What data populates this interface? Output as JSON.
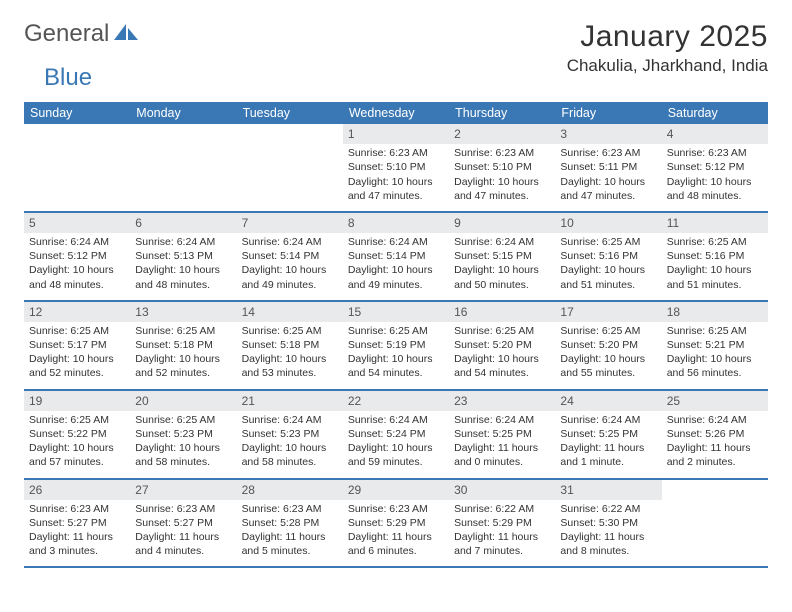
{
  "logo": {
    "part1": "General",
    "part2": "Blue"
  },
  "title": "January 2025",
  "location": "Chakulia, Jharkhand, India",
  "colors": {
    "header_bg": "#3a78b5",
    "header_text": "#ffffff",
    "daynum_bg": "#e9eaec",
    "border": "#3a78b5",
    "background": "#ffffff",
    "text": "#333333",
    "logo_gray": "#555555"
  },
  "day_headers": [
    "Sunday",
    "Monday",
    "Tuesday",
    "Wednesday",
    "Thursday",
    "Friday",
    "Saturday"
  ],
  "weeks": [
    [
      {
        "blank": true
      },
      {
        "blank": true
      },
      {
        "blank": true
      },
      {
        "num": "1",
        "sunrise": "Sunrise: 6:23 AM",
        "sunset": "Sunset: 5:10 PM",
        "daylight": "Daylight: 10 hours and 47 minutes."
      },
      {
        "num": "2",
        "sunrise": "Sunrise: 6:23 AM",
        "sunset": "Sunset: 5:10 PM",
        "daylight": "Daylight: 10 hours and 47 minutes."
      },
      {
        "num": "3",
        "sunrise": "Sunrise: 6:23 AM",
        "sunset": "Sunset: 5:11 PM",
        "daylight": "Daylight: 10 hours and 47 minutes."
      },
      {
        "num": "4",
        "sunrise": "Sunrise: 6:23 AM",
        "sunset": "Sunset: 5:12 PM",
        "daylight": "Daylight: 10 hours and 48 minutes."
      }
    ],
    [
      {
        "num": "5",
        "sunrise": "Sunrise: 6:24 AM",
        "sunset": "Sunset: 5:12 PM",
        "daylight": "Daylight: 10 hours and 48 minutes."
      },
      {
        "num": "6",
        "sunrise": "Sunrise: 6:24 AM",
        "sunset": "Sunset: 5:13 PM",
        "daylight": "Daylight: 10 hours and 48 minutes."
      },
      {
        "num": "7",
        "sunrise": "Sunrise: 6:24 AM",
        "sunset": "Sunset: 5:14 PM",
        "daylight": "Daylight: 10 hours and 49 minutes."
      },
      {
        "num": "8",
        "sunrise": "Sunrise: 6:24 AM",
        "sunset": "Sunset: 5:14 PM",
        "daylight": "Daylight: 10 hours and 49 minutes."
      },
      {
        "num": "9",
        "sunrise": "Sunrise: 6:24 AM",
        "sunset": "Sunset: 5:15 PM",
        "daylight": "Daylight: 10 hours and 50 minutes."
      },
      {
        "num": "10",
        "sunrise": "Sunrise: 6:25 AM",
        "sunset": "Sunset: 5:16 PM",
        "daylight": "Daylight: 10 hours and 51 minutes."
      },
      {
        "num": "11",
        "sunrise": "Sunrise: 6:25 AM",
        "sunset": "Sunset: 5:16 PM",
        "daylight": "Daylight: 10 hours and 51 minutes."
      }
    ],
    [
      {
        "num": "12",
        "sunrise": "Sunrise: 6:25 AM",
        "sunset": "Sunset: 5:17 PM",
        "daylight": "Daylight: 10 hours and 52 minutes."
      },
      {
        "num": "13",
        "sunrise": "Sunrise: 6:25 AM",
        "sunset": "Sunset: 5:18 PM",
        "daylight": "Daylight: 10 hours and 52 minutes."
      },
      {
        "num": "14",
        "sunrise": "Sunrise: 6:25 AM",
        "sunset": "Sunset: 5:18 PM",
        "daylight": "Daylight: 10 hours and 53 minutes."
      },
      {
        "num": "15",
        "sunrise": "Sunrise: 6:25 AM",
        "sunset": "Sunset: 5:19 PM",
        "daylight": "Daylight: 10 hours and 54 minutes."
      },
      {
        "num": "16",
        "sunrise": "Sunrise: 6:25 AM",
        "sunset": "Sunset: 5:20 PM",
        "daylight": "Daylight: 10 hours and 54 minutes."
      },
      {
        "num": "17",
        "sunrise": "Sunrise: 6:25 AM",
        "sunset": "Sunset: 5:20 PM",
        "daylight": "Daylight: 10 hours and 55 minutes."
      },
      {
        "num": "18",
        "sunrise": "Sunrise: 6:25 AM",
        "sunset": "Sunset: 5:21 PM",
        "daylight": "Daylight: 10 hours and 56 minutes."
      }
    ],
    [
      {
        "num": "19",
        "sunrise": "Sunrise: 6:25 AM",
        "sunset": "Sunset: 5:22 PM",
        "daylight": "Daylight: 10 hours and 57 minutes."
      },
      {
        "num": "20",
        "sunrise": "Sunrise: 6:25 AM",
        "sunset": "Sunset: 5:23 PM",
        "daylight": "Daylight: 10 hours and 58 minutes."
      },
      {
        "num": "21",
        "sunrise": "Sunrise: 6:24 AM",
        "sunset": "Sunset: 5:23 PM",
        "daylight": "Daylight: 10 hours and 58 minutes."
      },
      {
        "num": "22",
        "sunrise": "Sunrise: 6:24 AM",
        "sunset": "Sunset: 5:24 PM",
        "daylight": "Daylight: 10 hours and 59 minutes."
      },
      {
        "num": "23",
        "sunrise": "Sunrise: 6:24 AM",
        "sunset": "Sunset: 5:25 PM",
        "daylight": "Daylight: 11 hours and 0 minutes."
      },
      {
        "num": "24",
        "sunrise": "Sunrise: 6:24 AM",
        "sunset": "Sunset: 5:25 PM",
        "daylight": "Daylight: 11 hours and 1 minute."
      },
      {
        "num": "25",
        "sunrise": "Sunrise: 6:24 AM",
        "sunset": "Sunset: 5:26 PM",
        "daylight": "Daylight: 11 hours and 2 minutes."
      }
    ],
    [
      {
        "num": "26",
        "sunrise": "Sunrise: 6:23 AM",
        "sunset": "Sunset: 5:27 PM",
        "daylight": "Daylight: 11 hours and 3 minutes."
      },
      {
        "num": "27",
        "sunrise": "Sunrise: 6:23 AM",
        "sunset": "Sunset: 5:27 PM",
        "daylight": "Daylight: 11 hours and 4 minutes."
      },
      {
        "num": "28",
        "sunrise": "Sunrise: 6:23 AM",
        "sunset": "Sunset: 5:28 PM",
        "daylight": "Daylight: 11 hours and 5 minutes."
      },
      {
        "num": "29",
        "sunrise": "Sunrise: 6:23 AM",
        "sunset": "Sunset: 5:29 PM",
        "daylight": "Daylight: 11 hours and 6 minutes."
      },
      {
        "num": "30",
        "sunrise": "Sunrise: 6:22 AM",
        "sunset": "Sunset: 5:29 PM",
        "daylight": "Daylight: 11 hours and 7 minutes."
      },
      {
        "num": "31",
        "sunrise": "Sunrise: 6:22 AM",
        "sunset": "Sunset: 5:30 PM",
        "daylight": "Daylight: 11 hours and 8 minutes."
      },
      {
        "blank": true
      }
    ]
  ]
}
